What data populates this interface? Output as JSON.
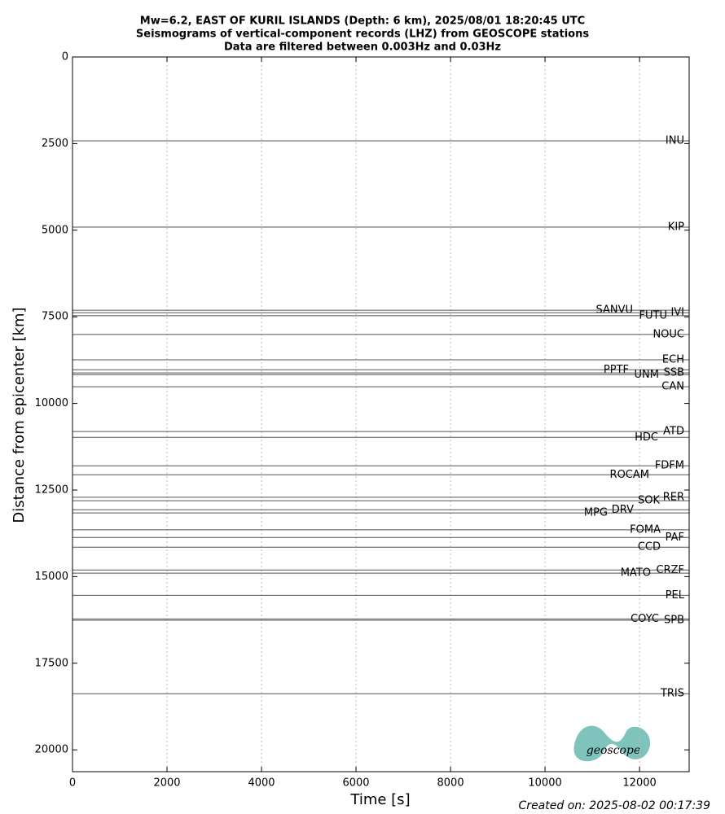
{
  "chart_data": {
    "type": "seismogram",
    "title": [
      "Mw=6.2, EAST OF KURIL ISLANDS (Depth: 6 km), 2025/08/01 18:20:45 UTC",
      "Seismograms of vertical-component records (LHZ) from GEOSCOPE stations",
      "Data are filtered between 0.003Hz and 0.03Hz"
    ],
    "x_label": "Time [s]",
    "y_label": "Distance from epicenter [km]",
    "xlim": [
      0,
      13050
    ],
    "xticks": [
      0,
      2000,
      4000,
      6000,
      8000,
      10000,
      12000
    ],
    "ylim": [
      20630,
      0
    ],
    "yticks": [
      0,
      2500,
      5000,
      7500,
      10000,
      12500,
      15000,
      17500,
      20000
    ],
    "grid": true,
    "color": "#555555",
    "stations": [
      "INU",
      "KIP",
      "SANVU",
      "IVI",
      "FUTU",
      "NOUC",
      "ECH",
      "PPTF",
      "UNM",
      "SSB",
      "CAN",
      "ATD",
      "HDC",
      "FDFM",
      "ROCAM",
      "RER",
      "SOK",
      "DRV",
      "MPG",
      "FOMA",
      "PAF",
      "CCD",
      "CRZF",
      "MATO",
      "PEL",
      "COYC",
      "SPB",
      "TRIS"
    ],
    "values": [
      2420,
      4910,
      7310,
      7380,
      7470,
      8010,
      8740,
      9030,
      9170,
      9120,
      9520,
      10810,
      10980,
      11800,
      12060,
      12710,
      12810,
      13070,
      13160,
      13650,
      13870,
      14150,
      14810,
      14900,
      15540,
      16220,
      16260,
      18380
    ],
    "footer": "Created on: 2025-08-02 00:17:39",
    "logo_text": "geoscope"
  }
}
